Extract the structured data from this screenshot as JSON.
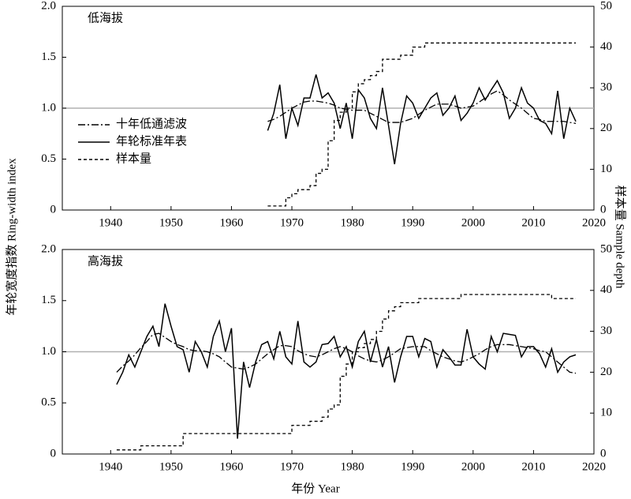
{
  "chart_data": [
    {
      "type": "line",
      "title": "低海拔",
      "xlim": [
        1932,
        2020
      ],
      "xticks": [
        1940,
        1950,
        1960,
        1970,
        1980,
        1990,
        2000,
        2010,
        2020
      ],
      "ylim": [
        0,
        2
      ],
      "yticks": [
        0,
        0.5,
        {
          "value": 1,
          "label": "1.0"
        },
        1.5,
        {
          "value": 2,
          "label": "2.0"
        }
      ],
      "y2lim": [
        0,
        50
      ],
      "y2ticks": [
        0,
        10,
        20,
        30,
        40,
        50
      ],
      "reference_line": 1,
      "reference_color": "#b0b0b0",
      "legend": "center left",
      "x": [
        1966,
        1967,
        1968,
        1969,
        1970,
        1971,
        1972,
        1973,
        1974,
        1975,
        1976,
        1977,
        1978,
        1979,
        1980,
        1981,
        1982,
        1983,
        1984,
        1985,
        1986,
        1987,
        1988,
        1989,
        1990,
        1991,
        1992,
        1993,
        1994,
        1995,
        1996,
        1997,
        1998,
        1999,
        2000,
        2001,
        2002,
        2003,
        2004,
        2005,
        2006,
        2007,
        2008,
        2009,
        2010,
        2011,
        2012,
        2013,
        2014,
        2015,
        2016,
        2017
      ],
      "series": [
        {
          "name": "十年低通滤波",
          "color": "#000000",
          "style": "dashdot",
          "values": [
            0.87,
            0.89,
            0.92,
            0.96,
            1.0,
            1.03,
            1.06,
            1.07,
            1.07,
            1.06,
            1.05,
            1.03,
            1.0,
            0.99,
            0.98,
            0.98,
            0.98,
            0.95,
            0.92,
            0.89,
            0.86,
            0.86,
            0.86,
            0.88,
            0.9,
            0.94,
            0.98,
            1.01,
            1.04,
            1.04,
            1.04,
            1.02,
            1.0,
            1.01,
            1.02,
            1.06,
            1.1,
            1.14,
            1.17,
            1.13,
            1.08,
            1.04,
            1.0,
            0.95,
            0.9,
            0.89,
            0.87,
            0.87,
            0.87,
            0.87,
            0.86,
            0.85
          ]
        },
        {
          "name": "年轮标准年表",
          "color": "#000000",
          "style": "solid",
          "values": [
            0.78,
            0.95,
            1.23,
            0.7,
            1.0,
            0.83,
            1.1,
            1.1,
            1.33,
            1.1,
            1.15,
            1.05,
            0.8,
            1.05,
            0.7,
            1.18,
            1.1,
            0.9,
            0.8,
            1.2,
            0.83,
            0.45,
            0.85,
            1.12,
            1.05,
            0.9,
            1.0,
            1.1,
            1.15,
            0.93,
            1.0,
            1.12,
            0.88,
            0.95,
            1.05,
            1.2,
            1.08,
            1.18,
            1.27,
            1.15,
            0.9,
            1.0,
            1.2,
            1.05,
            1.0,
            0.88,
            0.85,
            0.75,
            1.17,
            0.7,
            1.0,
            0.87
          ]
        },
        {
          "name": "样本量",
          "color": "#000000",
          "style": "dashed",
          "axis": "y2",
          "step": true,
          "values": [
            1,
            1,
            1,
            3,
            4,
            5,
            5,
            6,
            9,
            10,
            17,
            22,
            24,
            25,
            29,
            31,
            32,
            33,
            34,
            37,
            37,
            37,
            38,
            38,
            40,
            40,
            41,
            41,
            41,
            41,
            41,
            41,
            41,
            41,
            41,
            41,
            41,
            41,
            41,
            41,
            41,
            41,
            41,
            41,
            41,
            41,
            41,
            41,
            41,
            41,
            41,
            41
          ]
        }
      ]
    },
    {
      "type": "line",
      "title": "高海拔",
      "xlim": [
        1932,
        2020
      ],
      "xticks": [
        1940,
        1950,
        1960,
        1970,
        1980,
        1990,
        2000,
        2010,
        2020
      ],
      "ylim": [
        0,
        2
      ],
      "yticks": [
        0,
        0.5,
        {
          "value": 1,
          "label": "1.0"
        },
        1.5,
        {
          "value": 2,
          "label": "2.0"
        }
      ],
      "y2lim": [
        0,
        50
      ],
      "y2ticks": [
        0,
        10,
        20,
        30,
        40,
        50
      ],
      "reference_line": 1,
      "reference_color": "#b0b0b0",
      "x": [
        1941,
        1942,
        1943,
        1944,
        1945,
        1946,
        1947,
        1948,
        1949,
        1950,
        1951,
        1952,
        1953,
        1954,
        1955,
        1956,
        1957,
        1958,
        1959,
        1960,
        1961,
        1962,
        1963,
        1964,
        1965,
        1966,
        1967,
        1968,
        1969,
        1970,
        1971,
        1972,
        1973,
        1974,
        1975,
        1976,
        1977,
        1978,
        1979,
        1980,
        1981,
        1982,
        1983,
        1984,
        1985,
        1986,
        1987,
        1988,
        1989,
        1990,
        1991,
        1992,
        1993,
        1994,
        1995,
        1996,
        1997,
        1998,
        1999,
        2000,
        2001,
        2002,
        2003,
        2004,
        2005,
        2006,
        2007,
        2008,
        2009,
        2010,
        2011,
        2012,
        2013,
        2014,
        2015,
        2016,
        2017
      ],
      "series": [
        {
          "name": "十年低通滤波",
          "color": "#000000",
          "style": "dashdot",
          "values": [
            0.8,
            0.86,
            0.91,
            0.97,
            1.04,
            1.1,
            1.17,
            1.18,
            1.14,
            1.1,
            1.07,
            1.05,
            1.02,
            1.01,
            1.01,
            1.0,
            0.98,
            0.95,
            0.9,
            0.85,
            0.84,
            0.83,
            0.85,
            0.88,
            0.93,
            0.98,
            1.02,
            1.06,
            1.06,
            1.05,
            1.01,
            0.98,
            0.96,
            0.95,
            0.97,
            1.0,
            1.03,
            1.05,
            1.03,
            1.0,
            0.96,
            0.93,
            0.91,
            0.9,
            0.92,
            0.95,
            0.99,
            1.03,
            1.04,
            1.05,
            1.05,
            1.05,
            1.01,
            0.98,
            0.95,
            0.93,
            0.91,
            0.9,
            0.92,
            0.95,
            0.98,
            1.02,
            1.05,
            1.07,
            1.07,
            1.07,
            1.06,
            1.05,
            1.04,
            1.03,
            1.01,
            1.0,
            0.95,
            0.9,
            0.85,
            0.8,
            0.79
          ]
        },
        {
          "name": "年轮标准年表",
          "color": "#000000",
          "style": "solid",
          "values": [
            0.68,
            0.8,
            0.97,
            0.85,
            1.0,
            1.15,
            1.25,
            1.05,
            1.47,
            1.25,
            1.05,
            1.02,
            0.8,
            1.1,
            1.0,
            0.85,
            1.15,
            1.3,
            1.0,
            1.23,
            0.15,
            0.9,
            0.65,
            0.9,
            1.07,
            1.1,
            0.93,
            1.2,
            0.95,
            0.88,
            1.3,
            0.9,
            0.85,
            0.9,
            1.07,
            1.08,
            1.15,
            0.95,
            1.05,
            0.85,
            1.1,
            1.2,
            0.9,
            1.12,
            0.85,
            1.05,
            0.7,
            0.95,
            1.15,
            1.15,
            0.95,
            1.13,
            1.1,
            0.85,
            1.02,
            0.95,
            0.87,
            0.87,
            1.22,
            0.95,
            0.88,
            0.83,
            1.15,
            1.0,
            1.18,
            1.17,
            1.16,
            0.95,
            1.05,
            1.05,
            0.98,
            0.85,
            1.03,
            0.8,
            0.9,
            0.95,
            0.97
          ]
        },
        {
          "name": "样本量",
          "color": "#000000",
          "style": "dashed",
          "axis": "y2",
          "step": true,
          "values": [
            1,
            1,
            1,
            1,
            2,
            2,
            2,
            2,
            2,
            2,
            2,
            5,
            5,
            5,
            5,
            5,
            5,
            5,
            5,
            5,
            5,
            5,
            5,
            5,
            5,
            5,
            5,
            5,
            5,
            7,
            7,
            7,
            8,
            8,
            9,
            11,
            12,
            19,
            22,
            25,
            26,
            27,
            28,
            30,
            33,
            35,
            36,
            37,
            37,
            37,
            38,
            38,
            38,
            38,
            38,
            38,
            38,
            39,
            39,
            39,
            39,
            39,
            39,
            39,
            39,
            39,
            39,
            39,
            39,
            39,
            39,
            39,
            38,
            38,
            38,
            38,
            38
          ]
        }
      ]
    }
  ],
  "x_label": "年份 Year",
  "y_label": "年轮宽度指数 Ring-width index",
  "y2_label": "样本量 Sample depth"
}
